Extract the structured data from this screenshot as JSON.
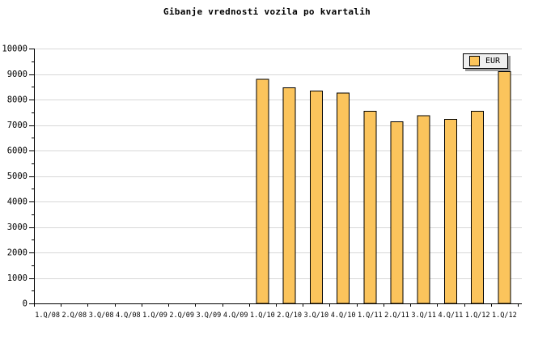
{
  "chart_data": {
    "type": "bar",
    "title": "Gibanje vrednosti vozila po kvartalih",
    "legend": {
      "label": "EUR",
      "position": "top-right"
    },
    "categories": [
      "1.Q/08",
      "2.Q/08",
      "3.Q/08",
      "4.Q/08",
      "1.Q/09",
      "2.Q/09",
      "3.Q/09",
      "4.Q/09",
      "1.Q/10",
      "2.Q/10",
      "3.Q/10",
      "4.Q/10",
      "1.Q/11",
      "2.Q/11",
      "3.Q/11",
      "4.Q/11",
      "1.Q/12",
      "1.Q/12"
    ],
    "values": [
      null,
      null,
      null,
      null,
      null,
      null,
      null,
      null,
      8800,
      8460,
      8340,
      8260,
      7540,
      7120,
      7370,
      7220,
      7540,
      9100
    ],
    "series_name": "EUR",
    "xlabel": "",
    "ylabel": "",
    "ylim": [
      0,
      10000
    ],
    "y_major_step": 1000,
    "y_minor_step": 500,
    "y_tick_labels": [
      "0",
      "1000",
      "2000",
      "3000",
      "4000",
      "5000",
      "6000",
      "7000",
      "8000",
      "9000",
      "10000"
    ],
    "grid": "horizontal-major",
    "colors": {
      "bar_fill": "#FBC45C",
      "bar_stroke": "#000000",
      "gridline": "#D8D8D8",
      "axis": "#000000",
      "legend_bg": "#EFEFEF",
      "legend_shadow": "#9C9C9C",
      "text": "#000000",
      "background": "#FFFFFF"
    }
  }
}
